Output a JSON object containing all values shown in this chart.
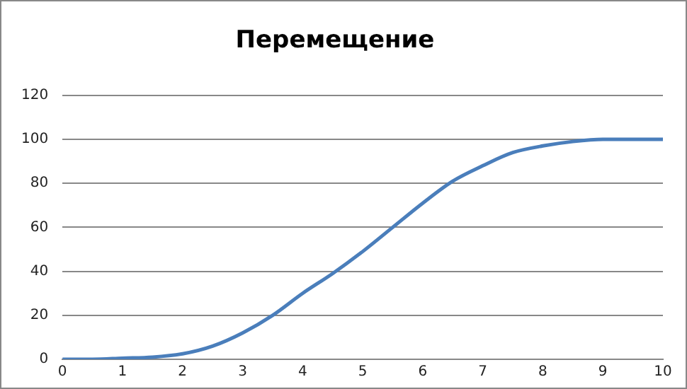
{
  "chart_data": {
    "type": "line",
    "title": "Перемещение",
    "x": [
      0,
      0.5,
      1,
      1.5,
      2,
      2.5,
      3,
      3.5,
      4,
      4.5,
      5,
      5.5,
      6,
      6.5,
      7,
      7.5,
      8,
      8.5,
      9,
      9.5,
      10
    ],
    "series": [
      {
        "color": "#4a7ebb",
        "values": [
          0,
          0,
          0.5,
          1,
          2.5,
          6,
          12,
          20,
          30,
          39,
          49,
          60,
          71,
          81,
          88,
          94,
          97,
          99,
          100,
          100,
          100
        ]
      }
    ],
    "xlim": [
      0,
      10
    ],
    "xticks": [
      0,
      1,
      2,
      3,
      4,
      5,
      6,
      7,
      8,
      9,
      10
    ],
    "ylim": [
      0,
      120
    ],
    "yticks": [
      0,
      20,
      40,
      60,
      80,
      100,
      120
    ],
    "grid": "y",
    "legend": false,
    "marker": "none",
    "line_style": "solid"
  }
}
